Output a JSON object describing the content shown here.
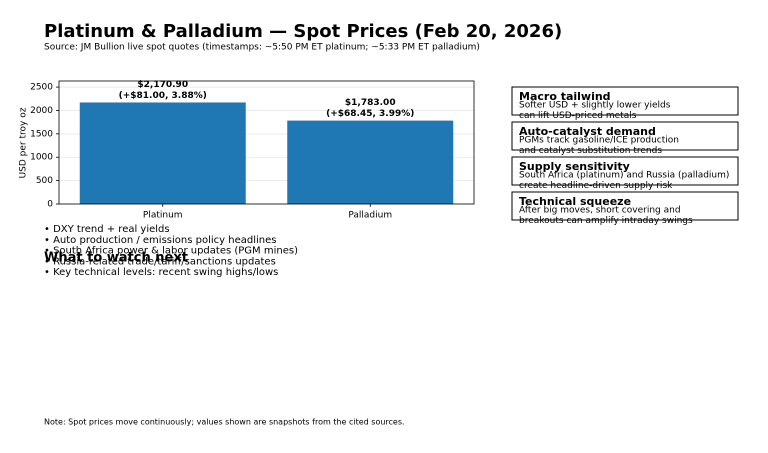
{
  "chart_data": {
    "type": "bar",
    "title": "Platinum & Palladium — Spot Prices (Feb 20, 2026)",
    "subtitle": "Source: JM Bullion live spot quotes (timestamps: ~5:50 PM ET platinum; ~5:33 PM ET palladium)",
    "ylabel": "USD per troy oz",
    "categories": [
      "Platinum",
      "Palladium"
    ],
    "values": [
      2170.9,
      1783.0
    ],
    "value_labels": [
      "$2,170.90",
      "$1,783.00"
    ],
    "change_labels": [
      "(+$81.00, 3.88%)",
      "(+$68.45, 3.99%)"
    ],
    "color": "#1f77b4",
    "ylim": [
      0,
      2630
    ],
    "yticks": [
      0,
      500,
      1000,
      1500,
      2000,
      2500
    ],
    "grid": true
  },
  "cards": [
    {
      "title": "Macro tailwind",
      "body": [
        "Softer USD + slightly lower yields",
        "can lift USD-priced metals"
      ]
    },
    {
      "title": "Auto-catalyst demand",
      "body": [
        "PGMs track gasoline/ICE production",
        "and catalyst substitution trends"
      ]
    },
    {
      "title": "Supply sensitivity",
      "body": [
        "South Africa (platinum) and Russia (palladium)",
        "create headline-driven supply risk"
      ]
    },
    {
      "title": "Technical squeeze",
      "body": [
        "After big moves, short covering and",
        "breakouts can amplify intraday swings"
      ]
    }
  ],
  "bullets": [
    "• DXY trend + real yields",
    "• Auto production / emissions policy headlines",
    "• South Africa power & labor updates (PGM mines)",
    "• Russia-related trade/tariff/sanctions updates",
    "• Key technical levels: recent swing highs/lows"
  ],
  "watch_heading": "What to watch next",
  "note": "Note: Spot prices move continuously; values shown are snapshots from the cited sources."
}
